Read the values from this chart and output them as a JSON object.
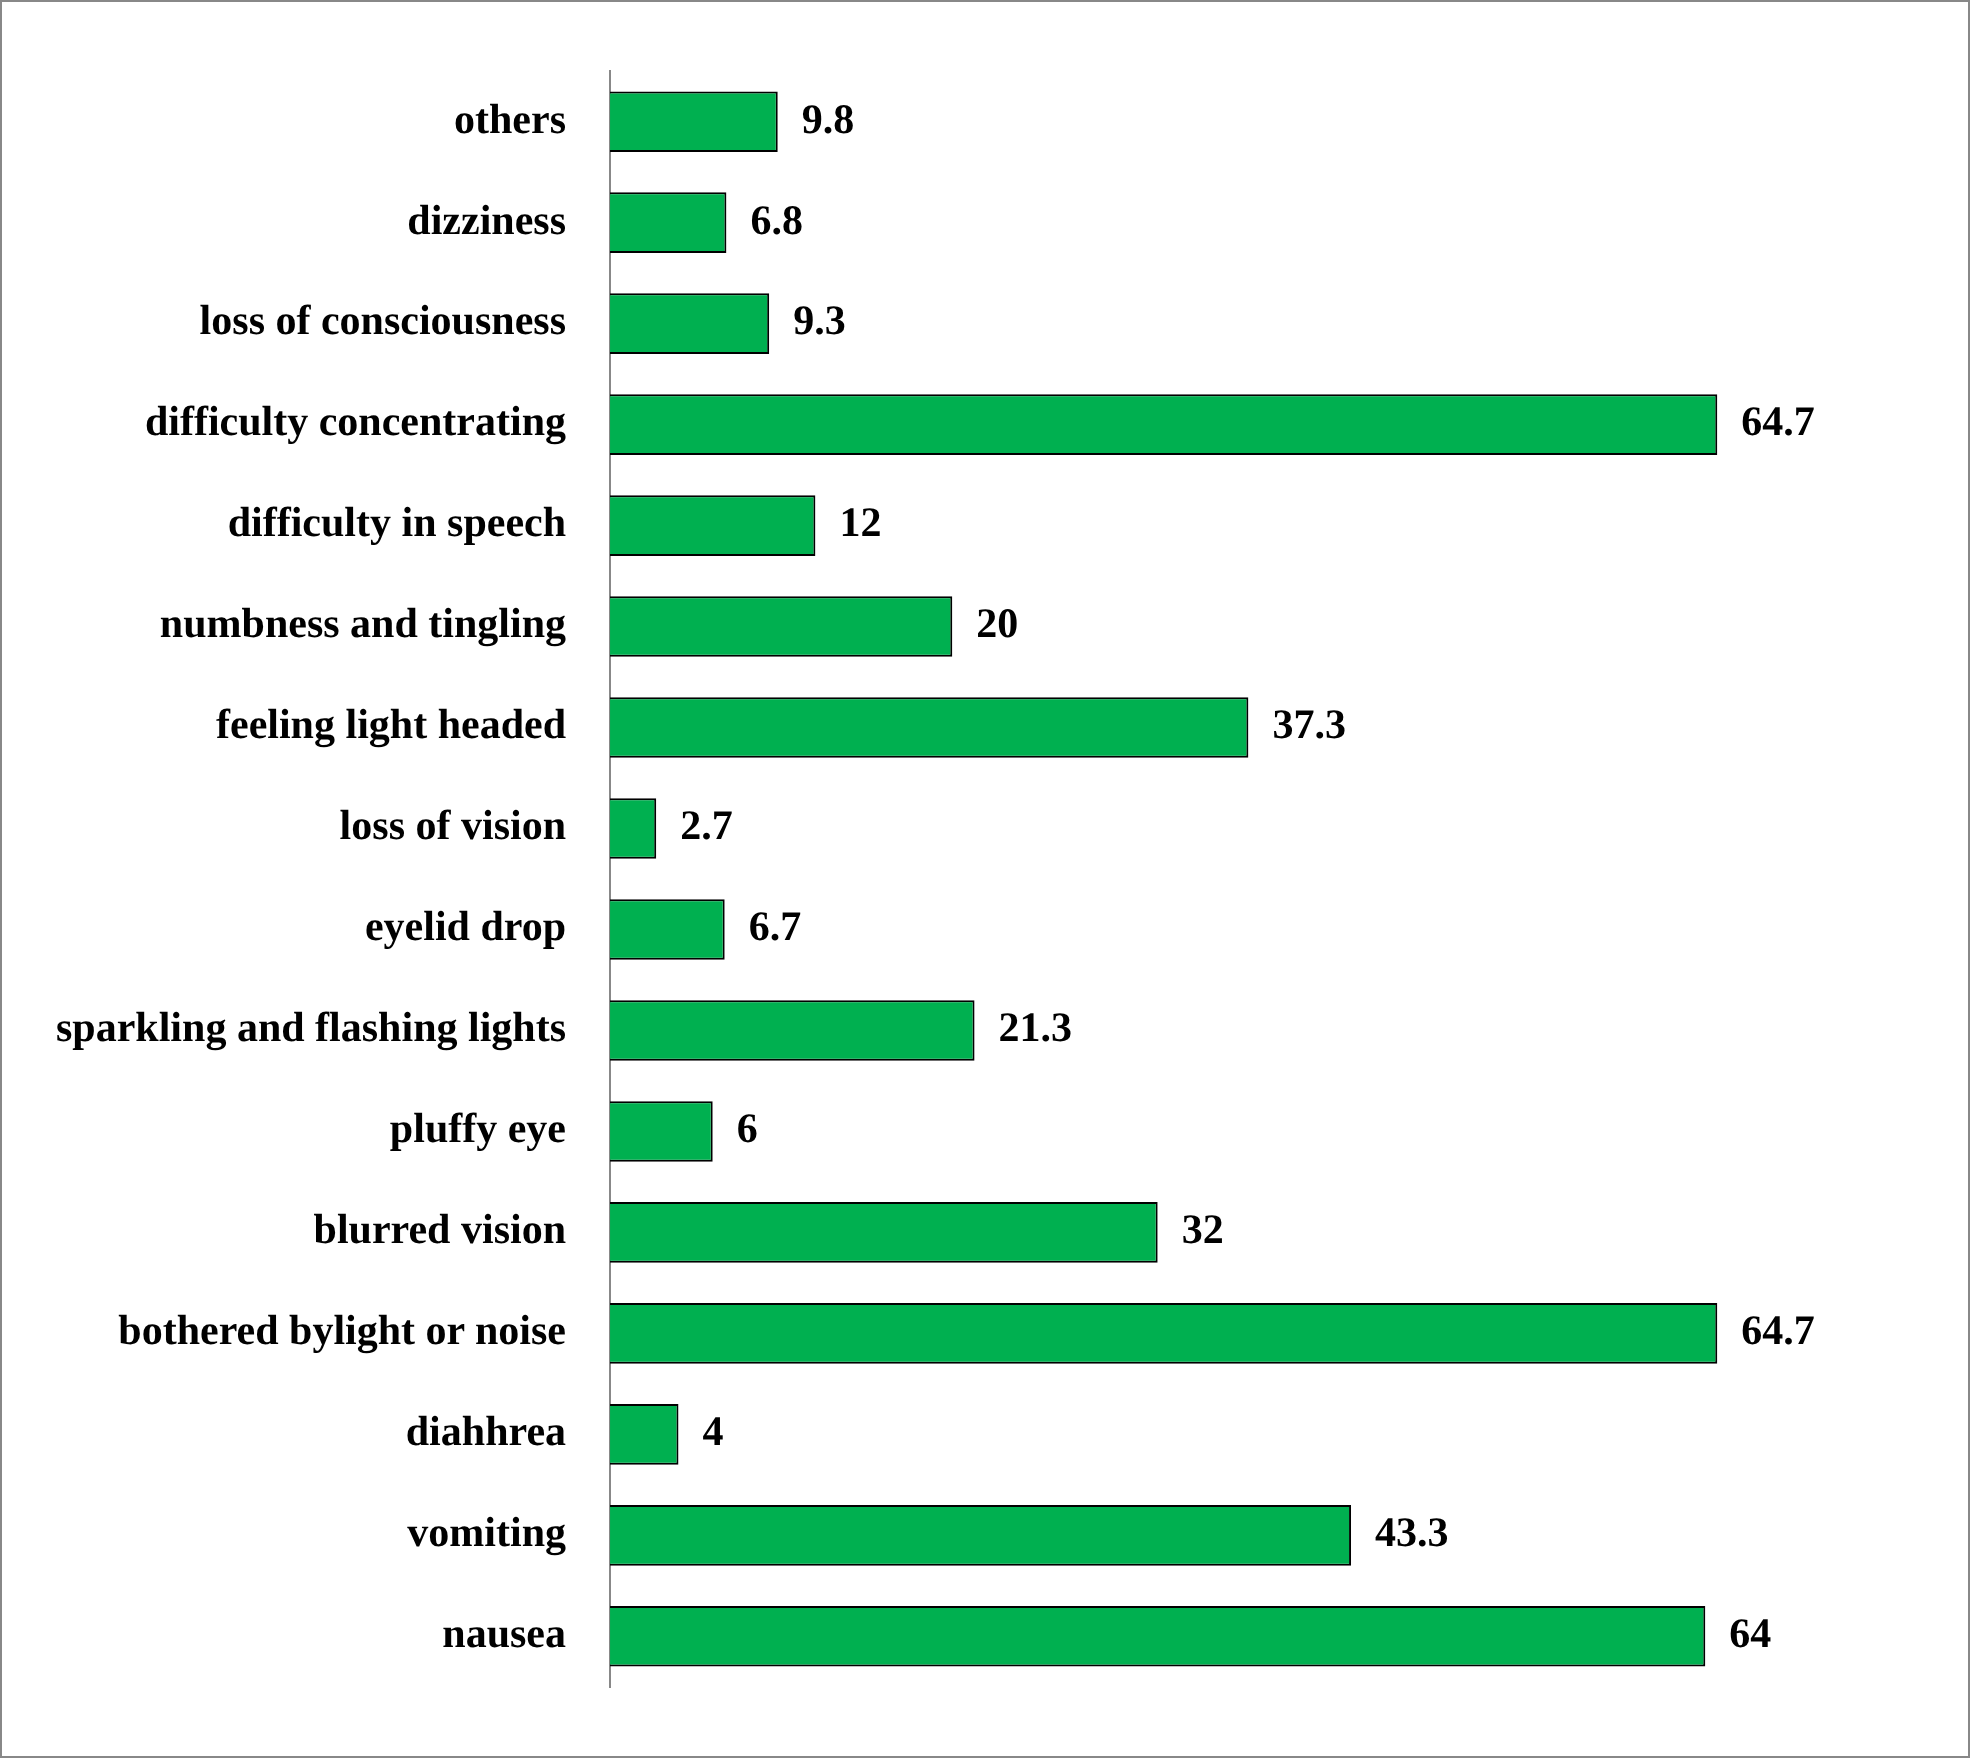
{
  "chart_data": {
    "type": "bar",
    "orientation": "horizontal",
    "categories": [
      "others",
      "dizziness",
      "loss of consciousness",
      "difficulty concentrating",
      "difficulty in speech",
      "numbness and tingling",
      "feeling light headed",
      "loss of vision",
      "eyelid drop",
      "sparkling and flashing lights",
      "pluffy eye",
      "blurred vision",
      "bothered bylight or noise",
      "diahhrea",
      "vomiting",
      "nausea"
    ],
    "values": [
      9.8,
      6.8,
      9.3,
      64.7,
      12,
      20,
      37.3,
      2.7,
      6.7,
      21.3,
      6,
      32,
      64.7,
      4,
      43.3,
      64
    ],
    "color": "#00b050",
    "data_labels": true,
    "grid": false,
    "legend": false
  }
}
